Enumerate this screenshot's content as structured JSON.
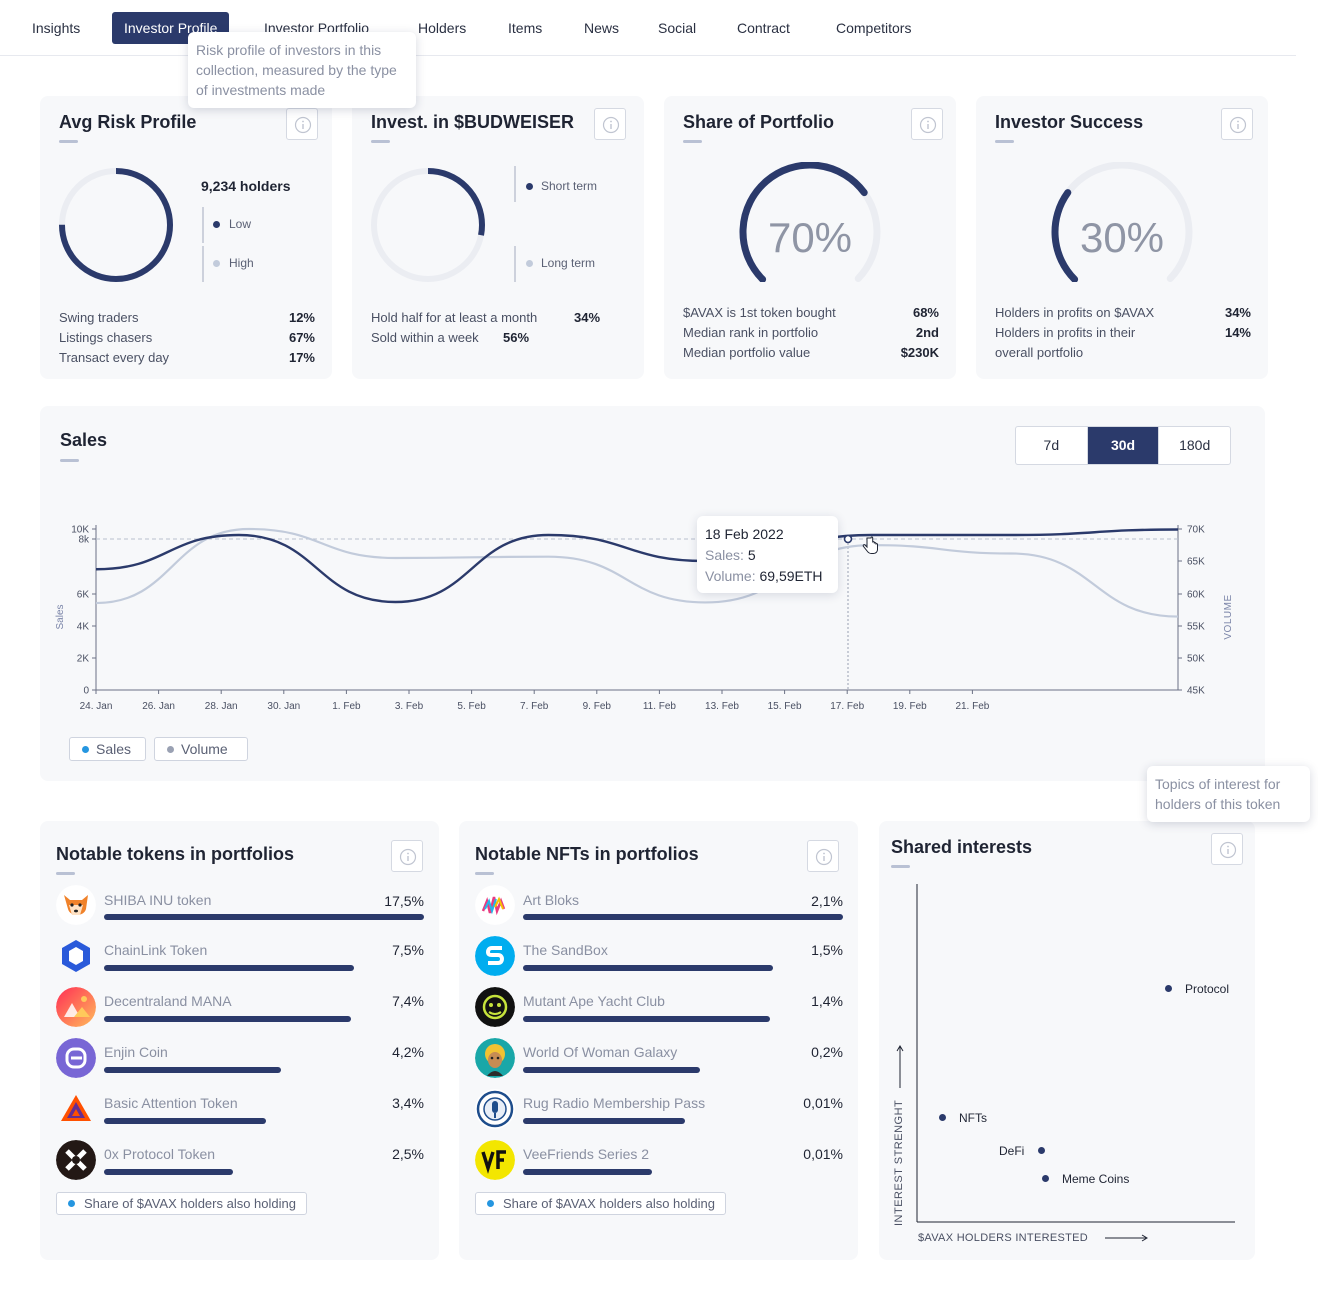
{
  "nav": {
    "tabs": [
      {
        "label": "Insights"
      },
      {
        "label": "Investor Profile"
      },
      {
        "label": "Investor Portfolio"
      },
      {
        "label": "Holders"
      },
      {
        "label": "Items"
      },
      {
        "label": "News"
      },
      {
        "label": "Social"
      },
      {
        "label": "Contract"
      },
      {
        "label": "Competitors"
      }
    ],
    "active_tab": "Investor Profile",
    "tooltip": "Risk profile of investors in this collection, measured by the type of investments made"
  },
  "risk": {
    "title": "Avg Risk Profile",
    "holders": "9,234 holders",
    "legend_low": "Low",
    "legend_high": "High",
    "low_fraction": 0.75,
    "stats": [
      {
        "label": "Swing traders",
        "value": "12%"
      },
      {
        "label": "Listings chasers",
        "value": "67%"
      },
      {
        "label": "Transact every day",
        "value": "17%"
      }
    ]
  },
  "invest": {
    "title": "Invest. in $BUDWEISER",
    "legend_short": "Short term",
    "legend_long": "Long term",
    "short_fraction": 0.28,
    "stats": [
      {
        "label": "Hold half for at least a month",
        "value": "34%"
      },
      {
        "label": "Sold within a week",
        "value": "56%"
      }
    ]
  },
  "share": {
    "title": "Share of Portfolio",
    "percent": "70%",
    "gauge_fraction": 0.7,
    "stats": [
      {
        "label": "$AVAX is 1st token bought",
        "value": "68%"
      },
      {
        "label": "Median rank in portfolio",
        "value": "2nd"
      },
      {
        "label": "Median portfolio value",
        "value": "$230K"
      }
    ]
  },
  "success": {
    "title": "Investor Success",
    "percent": "30%",
    "gauge_fraction": 0.3,
    "stats": [
      {
        "label": "Holders in profits on $AVAX",
        "value": "34%"
      },
      {
        "label": "Holders in profits in their",
        "value": "14%"
      },
      {
        "label": "overall portfolio",
        "value": ""
      }
    ]
  },
  "sales": {
    "title": "Sales",
    "periods": [
      "7d",
      "30d",
      "180d"
    ],
    "active_period": "30d",
    "legend_sales": "Sales",
    "legend_volume": "Volume",
    "tooltip": {
      "date": "18 Feb 2022",
      "sales_label": "Sales:",
      "sales_value": "5",
      "volume_label": "Volume:",
      "volume_value": "69,59ETH"
    }
  },
  "chart_data": {
    "type": "line",
    "title": "Sales",
    "xlabel": "",
    "ylabel": "Sales",
    "y2label": "VOLUME",
    "categories": [
      "24. Jan",
      "26. Jan",
      "28. Jan",
      "30. Jan",
      "1. Feb",
      "3. Feb",
      "5. Feb",
      "7. Feb",
      "9. Feb",
      "11. Feb",
      "13. Feb",
      "15. Feb",
      "17. Feb",
      "19. Feb",
      "21. Feb"
    ],
    "y_ticks": [
      "0",
      "2K",
      "4K",
      "6K",
      "8k",
      "10K"
    ],
    "y2_ticks": [
      "45K",
      "50K",
      "55K",
      "60K",
      "65K",
      "70K"
    ],
    "ylim": [
      0,
      10000
    ],
    "y2lim": [
      45000,
      70000
    ],
    "series": [
      {
        "name": "Sales",
        "color": "#2b3a6b",
        "axis": "left",
        "x": [
          0,
          4.2,
          8.8,
          13.3,
          17.9,
          22.8,
          26.9,
          31.8
        ],
        "values": [
          6900,
          8800,
          5500,
          8800,
          7200,
          8800,
          8800,
          9900
        ]
      },
      {
        "name": "Volume",
        "color": "#c2cbdb",
        "axis": "right",
        "x": [
          0,
          4.5,
          8.8,
          13.3,
          17.9,
          22.8,
          26.9,
          31.8
        ],
        "values": [
          58500,
          70000,
          65500,
          65700,
          58600,
          67500,
          66200,
          56400
        ]
      }
    ]
  },
  "tokens": {
    "title": "Notable tokens in portfolios",
    "items": [
      {
        "name": "SHIBA INU token",
        "pct": "17,5%",
        "share": 17.5
      },
      {
        "name": "ChainLink Token",
        "pct": "7,5%",
        "share": 7.5
      },
      {
        "name": "Decentraland MANA",
        "pct": "7,4%",
        "share": 7.4
      },
      {
        "name": "Enjin Coin",
        "pct": "4,2%",
        "share": 4.2
      },
      {
        "name": "Basic Attention Token",
        "pct": "3,4%",
        "share": 3.4
      },
      {
        "name": "0x Protocol Token",
        "pct": "2,5%",
        "share": 2.5
      }
    ],
    "badge": "Share of $AVAX holders also holding"
  },
  "nfts": {
    "title": "Notable NFTs in portfolios",
    "items": [
      {
        "name": "Art Bloks",
        "pct": "2,1%",
        "share": 2.1
      },
      {
        "name": "The SandBox",
        "pct": "1,5%",
        "share": 1.5
      },
      {
        "name": "Mutant Ape Yacht Club",
        "pct": "1,4%",
        "share": 1.4
      },
      {
        "name": "World Of Woman Galaxy",
        "pct": "0,2%",
        "share": 0.2
      },
      {
        "name": "Rug Radio Membership Pass",
        "pct": "0,01%",
        "share": 0.01
      },
      {
        "name": "VeeFriends Series 2",
        "pct": "0,01%",
        "share": 0.01
      }
    ],
    "badge": "Share of $AVAX holders also holding"
  },
  "interests": {
    "title": "Shared interests",
    "tooltip": "Topics of interest for holders of this token",
    "y_axis": "INTEREST STRENGHT",
    "x_axis": "$AVAX HOLDERS INTERESTED",
    "points": [
      {
        "label": "Protocol"
      },
      {
        "label": "NFTs"
      },
      {
        "label": "DeFi"
      },
      {
        "label": "Meme Coins"
      }
    ]
  }
}
